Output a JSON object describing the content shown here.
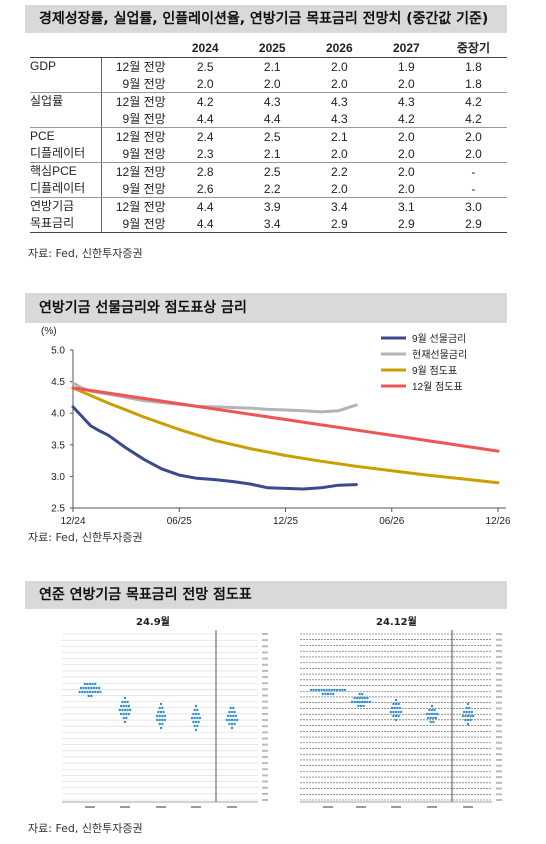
{
  "section1": {
    "title": "경제성장률, 실업률, 인플레이션율, 연방기금 목표금리 전망치 (중간값 기준)",
    "headers": [
      "",
      "",
      "2024",
      "2025",
      "2026",
      "2027",
      "중장기"
    ],
    "rows": [
      {
        "indicator": "GDP",
        "vintage": "12월 전망",
        "values": [
          "2.5",
          "2.1",
          "2.0",
          "1.9",
          "1.8"
        ]
      },
      {
        "indicator": "",
        "vintage": "9월 전망",
        "values": [
          "2.0",
          "2.0",
          "2.0",
          "2.0",
          "1.8"
        ]
      },
      {
        "indicator": "실업률",
        "vintage": "12월 전망",
        "values": [
          "4.2",
          "4.3",
          "4.3",
          "4.3",
          "4.2"
        ]
      },
      {
        "indicator": "",
        "vintage": "9월 전망",
        "values": [
          "4.4",
          "4.4",
          "4.3",
          "4.2",
          "4.2"
        ]
      },
      {
        "indicator": "PCE",
        "vintage": "12월 전망",
        "values": [
          "2.4",
          "2.5",
          "2.1",
          "2.0",
          "2.0"
        ]
      },
      {
        "indicator": "디플레이터",
        "vintage": "9월 전망",
        "values": [
          "2.3",
          "2.1",
          "2.0",
          "2.0",
          "2.0"
        ]
      },
      {
        "indicator": "핵심PCE",
        "vintage": "12월 전망",
        "values": [
          "2.8",
          "2.5",
          "2.2",
          "2.0",
          "-"
        ]
      },
      {
        "indicator": "디플레이터",
        "vintage": "9월 전망",
        "values": [
          "2.6",
          "2.2",
          "2.0",
          "2.0",
          "-"
        ]
      },
      {
        "indicator": "연방기금",
        "vintage": "12월 전망",
        "values": [
          "4.4",
          "3.9",
          "3.4",
          "3.1",
          "3.0"
        ]
      },
      {
        "indicator": "목표금리",
        "vintage": "9월 전망",
        "values": [
          "4.4",
          "3.4",
          "2.9",
          "2.9",
          "2.9"
        ]
      }
    ],
    "source": "자료: Fed, 신한투자증권"
  },
  "section2": {
    "title": "연방기금 선물금리와 점도표상 금리",
    "source": "자료: Fed, 신한투자증권"
  },
  "section3": {
    "title": "연준 연방기금 목표금리 전망 점도표",
    "panel_left_title": "24.9월",
    "panel_right_title": "24.12월",
    "source": "자료: Fed, 신한투자증권"
  },
  "chart_data": [
    {
      "type": "table",
      "title": "경제성장률, 실업률, 인플레이션율, 연방기금 목표금리 전망치 (중간값 기준)",
      "columns": [
        "2024",
        "2025",
        "2026",
        "2027",
        "중장기"
      ]
    },
    {
      "type": "line",
      "title": "연방기금 선물금리와 점도표상 금리",
      "ylabel": "(%)",
      "ylim": [
        2.5,
        5.0
      ],
      "yticks": [
        "5.0",
        "4.5",
        "4.0",
        "3.5",
        "3.0",
        "2.5"
      ],
      "xlim": [
        0,
        24
      ],
      "xticks": [
        {
          "x": 0,
          "label": "12/24"
        },
        {
          "x": 6,
          "label": "06/25"
        },
        {
          "x": 12,
          "label": "12/25"
        },
        {
          "x": 18,
          "label": "06/26"
        },
        {
          "x": 24,
          "label": "12/26"
        }
      ],
      "legend_position": "top-right",
      "series": [
        {
          "name": "9월 선물금리",
          "color": "#3b4a8c",
          "x": [
            0,
            0.5,
            1,
            1.5,
            2,
            3,
            4,
            5,
            6,
            7,
            8,
            9,
            10,
            11,
            12,
            13,
            14,
            15,
            16
          ],
          "y": [
            4.1,
            3.95,
            3.8,
            3.72,
            3.65,
            3.45,
            3.27,
            3.12,
            3.02,
            2.97,
            2.95,
            2.92,
            2.88,
            2.82,
            2.81,
            2.8,
            2.82,
            2.86,
            2.87
          ]
        },
        {
          "name": "현재선물금리",
          "color": "#b4b4b4",
          "x": [
            0,
            0.5,
            1,
            2,
            3,
            4,
            5,
            6,
            7,
            8,
            9,
            10,
            11,
            12,
            13,
            14,
            15,
            16
          ],
          "y": [
            4.48,
            4.4,
            4.35,
            4.3,
            4.25,
            4.2,
            4.17,
            4.14,
            4.11,
            4.1,
            4.09,
            4.08,
            4.06,
            4.05,
            4.04,
            4.02,
            4.04,
            4.13
          ]
        },
        {
          "name": "9월 점도표",
          "color": "#c9a000",
          "x": [
            0,
            2,
            4,
            6,
            8,
            10,
            12,
            14,
            16,
            18,
            20,
            22,
            24
          ],
          "y": [
            4.4,
            4.16,
            3.94,
            3.74,
            3.57,
            3.44,
            3.33,
            3.24,
            3.16,
            3.09,
            3.02,
            2.96,
            2.9
          ]
        },
        {
          "name": "12월 점도표",
          "color": "#ee5555",
          "x": [
            0,
            24
          ],
          "y": [
            4.4,
            3.4
          ]
        }
      ]
    }
  ]
}
